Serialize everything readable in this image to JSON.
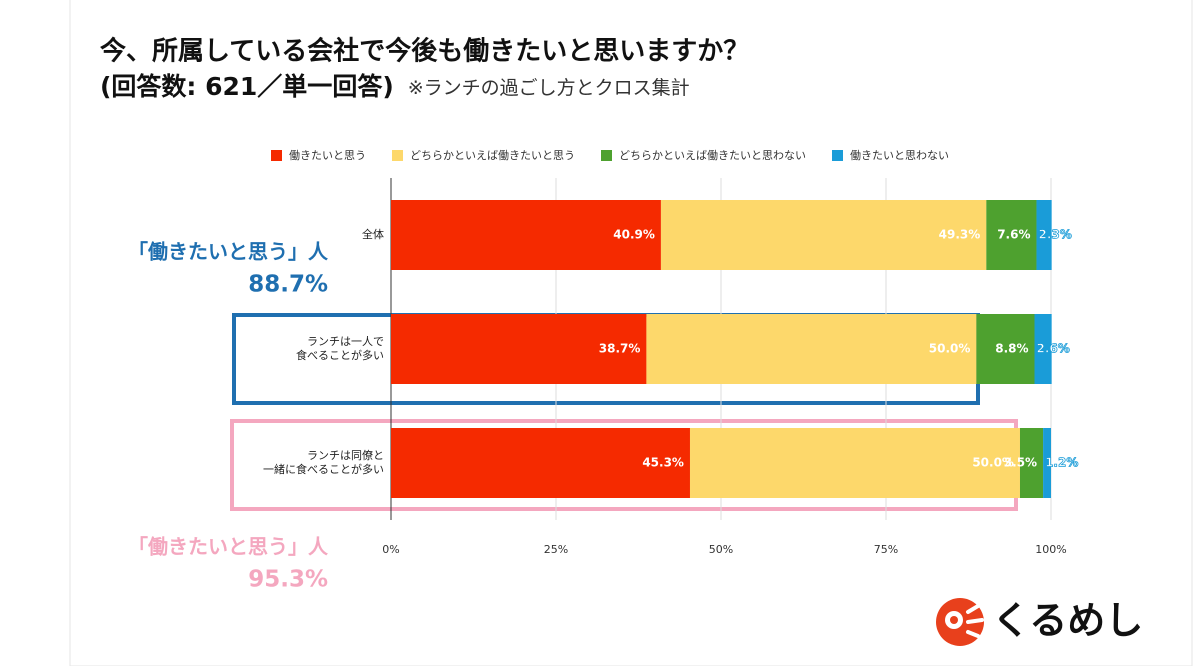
{
  "chart_data": {
    "type": "stacked_bar_horizontal",
    "title": "今、所属している会社で今後も働きたいと思いますか？",
    "subtitle": "(回答数: 621／単一回答)",
    "note": "※ランチの過ごし方とクロス集計",
    "categories": [
      [
        "全体"
      ],
      [
        "ランチは一人で",
        "食べることが多い"
      ],
      [
        "ランチは同僚と",
        "一緒に食べることが多い"
      ]
    ],
    "series": [
      {
        "name": "働きたいと思う",
        "color": "#f52a00",
        "values": [
          40.9,
          38.7,
          45.3
        ],
        "value_labels": [
          "40.9%",
          "38.7%",
          "45.3%"
        ]
      },
      {
        "name": "どちらかといえば働きたいと思う",
        "color": "#fdd86b",
        "values": [
          49.3,
          50.0,
          50.0
        ],
        "value_labels": [
          "49.3%",
          "50.0%",
          "50.0%"
        ]
      },
      {
        "name": "どちらかといえば働きたいと思わない",
        "color": "#4ea12f",
        "values": [
          7.6,
          8.8,
          3.5
        ],
        "value_labels": [
          "7.6%",
          "8.8%",
          "3.5%"
        ]
      },
      {
        "name": "働きたいと思わない",
        "color": "#1a9cd8",
        "values": [
          2.3,
          2.6,
          1.2
        ],
        "value_labels": [
          "2.3%",
          "2.6%",
          "1.2%"
        ]
      }
    ],
    "xlim": [
      0,
      100
    ],
    "xticks": [
      {
        "value": 0,
        "label": "0%"
      },
      {
        "value": 25,
        "label": "25%"
      },
      {
        "value": 50,
        "label": "50%"
      },
      {
        "value": 75,
        "label": "75%"
      },
      {
        "value": 100,
        "label": "100%"
      }
    ],
    "grid": true,
    "legend": "top",
    "annotations": [
      {
        "text": "「働きたいと思う」人",
        "total": "88.7%",
        "color": "#1f6fb0"
      },
      {
        "text": "「働きたいと思う」人",
        "total": "95.3%",
        "color": "#f4a7bf"
      }
    ],
    "logo": "くるめし"
  }
}
